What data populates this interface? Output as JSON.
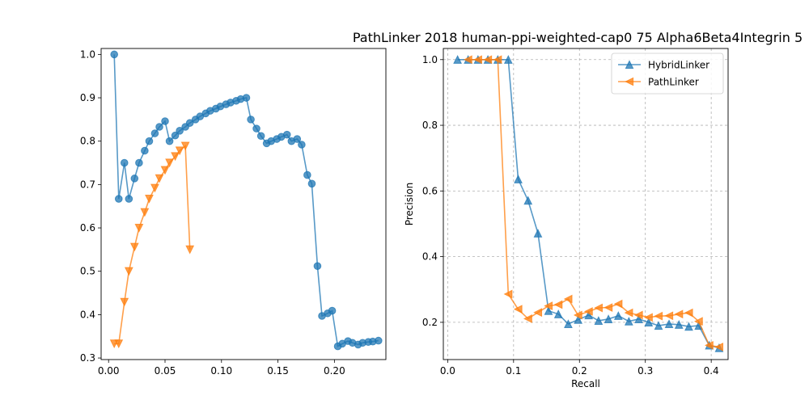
{
  "chart_data": [
    {
      "type": "line",
      "title": "",
      "xlabel": "",
      "ylabel": "",
      "xlim": [
        -0.0066,
        0.2456
      ],
      "ylim": [
        0.2964,
        1.0137
      ],
      "xticks": [
        0.0,
        0.05,
        0.1,
        0.15,
        0.2
      ],
      "xtick_labels": [
        "0.00",
        "0.05",
        "0.10",
        "0.15",
        "0.20"
      ],
      "yticks": [
        0.3,
        0.4,
        0.5,
        0.6,
        0.7,
        0.8,
        0.9,
        1.0
      ],
      "ytick_labels": [
        "0.3",
        "0.4",
        "0.5",
        "0.6",
        "0.7",
        "0.8",
        "0.9",
        "1.0"
      ],
      "grid": false,
      "series": [
        {
          "color": "#1f77b4",
          "marker": "circle",
          "x": [
            0.005,
            0.009,
            0.014,
            0.018,
            0.023,
            0.027,
            0.032,
            0.036,
            0.041,
            0.045,
            0.05,
            0.054,
            0.059,
            0.063,
            0.068,
            0.072,
            0.077,
            0.081,
            0.086,
            0.09,
            0.095,
            0.099,
            0.104,
            0.108,
            0.113,
            0.117,
            0.122,
            0.126,
            0.131,
            0.135,
            0.14,
            0.144,
            0.149,
            0.153,
            0.158,
            0.162,
            0.167,
            0.171,
            0.176,
            0.18,
            0.185,
            0.189,
            0.194,
            0.198,
            0.203,
            0.207,
            0.212,
            0.216,
            0.221,
            0.225,
            0.23,
            0.234,
            0.239
          ],
          "y": [
            1.0,
            0.667,
            0.75,
            0.667,
            0.714,
            0.75,
            0.778,
            0.8,
            0.818,
            0.833,
            0.846,
            0.8,
            0.813,
            0.824,
            0.833,
            0.842,
            0.85,
            0.857,
            0.864,
            0.87,
            0.875,
            0.88,
            0.885,
            0.889,
            0.893,
            0.897,
            0.9,
            0.85,
            0.829,
            0.812,
            0.795,
            0.8,
            0.805,
            0.81,
            0.815,
            0.8,
            0.805,
            0.792,
            0.722,
            0.702,
            0.512,
            0.397,
            0.403,
            0.409,
            0.327,
            0.333,
            0.339,
            0.335,
            0.331,
            0.335,
            0.337,
            0.338,
            0.34
          ]
        },
        {
          "color": "#ff7f0e",
          "marker": "triangle-down",
          "x": [
            0.005,
            0.009,
            0.014,
            0.018,
            0.023,
            0.027,
            0.032,
            0.036,
            0.041,
            0.045,
            0.05,
            0.054,
            0.059,
            0.063,
            0.068,
            0.072
          ],
          "y": [
            0.333,
            0.333,
            0.429,
            0.5,
            0.556,
            0.6,
            0.636,
            0.667,
            0.692,
            0.714,
            0.733,
            0.75,
            0.765,
            0.778,
            0.789,
            0.55
          ]
        }
      ]
    },
    {
      "type": "line",
      "title": "PathLinker 2018 human-ppi-weighted-cap0 75 Alpha6Beta4Integrin 5",
      "xlabel": "Recall",
      "ylabel": "Precision",
      "xlim": [
        -0.0066,
        0.4256
      ],
      "ylim": [
        0.0866,
        1.0339
      ],
      "xticks": [
        0.0,
        0.1,
        0.2,
        0.3,
        0.4
      ],
      "xtick_labels": [
        "0.0",
        "0.1",
        "0.2",
        "0.3",
        "0.4"
      ],
      "yticks": [
        0.2,
        0.4,
        0.6,
        0.8,
        1.0
      ],
      "ytick_labels": [
        "0.2",
        "0.4",
        "0.6",
        "0.8",
        "1.0"
      ],
      "grid": true,
      "legend": "top-right",
      "series": [
        {
          "name": "HybridLinker",
          "color": "#1f77b4",
          "marker": "triangle-up",
          "x": [
            0.015,
            0.031,
            0.046,
            0.061,
            0.076,
            0.092,
            0.107,
            0.122,
            0.137,
            0.153,
            0.168,
            0.183,
            0.198,
            0.214,
            0.229,
            0.244,
            0.259,
            0.275,
            0.29,
            0.305,
            0.32,
            0.336,
            0.351,
            0.366,
            0.381,
            0.397,
            0.412
          ],
          "y": [
            1.0,
            1.0,
            1.0,
            1.0,
            1.0,
            1.0,
            0.636,
            0.571,
            0.471,
            0.235,
            0.225,
            0.195,
            0.208,
            0.222,
            0.205,
            0.21,
            0.22,
            0.203,
            0.21,
            0.2,
            0.19,
            0.195,
            0.193,
            0.187,
            0.19,
            0.13,
            0.122
          ]
        },
        {
          "name": "PathLinker",
          "color": "#ff7f0e",
          "marker": "triangle-left",
          "x": [
            0.031,
            0.046,
            0.061,
            0.076,
            0.092,
            0.107,
            0.122,
            0.137,
            0.153,
            0.168,
            0.183,
            0.198,
            0.214,
            0.229,
            0.244,
            0.259,
            0.275,
            0.29,
            0.305,
            0.32,
            0.336,
            0.351,
            0.366,
            0.381,
            0.397,
            0.412
          ],
          "y": [
            1.0,
            1.0,
            1.0,
            1.0,
            0.286,
            0.24,
            0.211,
            0.23,
            0.25,
            0.254,
            0.271,
            0.222,
            0.233,
            0.244,
            0.245,
            0.256,
            0.229,
            0.222,
            0.215,
            0.219,
            0.22,
            0.225,
            0.229,
            0.203,
            0.13,
            0.125
          ]
        }
      ]
    }
  ]
}
